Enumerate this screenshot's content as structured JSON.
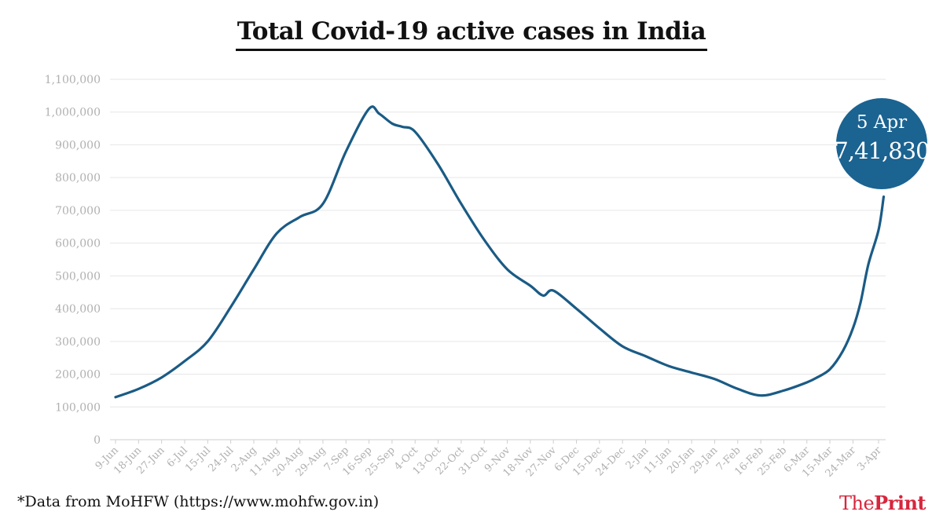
{
  "title": "Total Covid-19 active cases in India",
  "source": "*Data from MoHFW (https://www.mohfw.gov.in)",
  "logo": {
    "part1": "The",
    "part2": "Print"
  },
  "colors": {
    "line": "#1a5b85",
    "bubble": "#1b6391",
    "grid": "#e6e6e6",
    "tick_text": "#b0b0b0",
    "logo": "#d7263d"
  },
  "chart_data": {
    "type": "line",
    "title": "Total Covid-19 active cases in India",
    "xlabel": "",
    "ylabel": "",
    "ylim": [
      0,
      1100000
    ],
    "yticks": [
      0,
      100000,
      200000,
      300000,
      400000,
      500000,
      600000,
      700000,
      800000,
      900000,
      1000000,
      1100000
    ],
    "ytick_labels": [
      "0",
      "100,000",
      "200,000",
      "300,000",
      "400,000",
      "500,000",
      "600,000",
      "700,000",
      "800,000",
      "900,000",
      "1,000,000",
      "1,100,000"
    ],
    "xtick_labels": [
      "9-Jun",
      "18-Jun",
      "27-Jun",
      "6-Jul",
      "15-Jul",
      "24-Jul",
      "2-Aug",
      "11-Aug",
      "20-Aug",
      "29-Aug",
      "7-Sep",
      "16-Sep",
      "25-Sep",
      "4-Oct",
      "13-Oct",
      "22-Oct",
      "31-Oct",
      "9-Nov",
      "18-Nov",
      "27-Nov",
      "6-Dec",
      "15-Dec",
      "24-Dec",
      "2-Jan",
      "11-Jan",
      "20-Jan",
      "29-Jan",
      "7-Feb",
      "16-Feb",
      "25-Feb",
      "6-Mar",
      "15-Mar",
      "24-Mar",
      "3-Apr"
    ],
    "grid": true,
    "annotation": {
      "date": "5 Apr",
      "value": "7,41,830"
    },
    "series": [
      {
        "x": [
          "9-Jun",
          "18-Jun",
          "27-Jun",
          "6-Jul",
          "15-Jul",
          "24-Jul",
          "2-Aug",
          "11-Aug",
          "20-Aug",
          "29-Aug",
          "7-Sep",
          "16-Sep",
          "20-Sep",
          "25-Sep",
          "29-Sep",
          "4-Oct",
          "13-Oct",
          "22-Oct",
          "31-Oct",
          "9-Nov",
          "18-Nov",
          "23-Nov",
          "27-Nov",
          "6-Dec",
          "15-Dec",
          "24-Dec",
          "2-Jan",
          "11-Jan",
          "20-Jan",
          "29-Jan",
          "7-Feb",
          "16-Feb",
          "25-Feb",
          "6-Mar",
          "10-Mar",
          "15-Mar",
          "20-Mar",
          "24-Mar",
          "27-Mar",
          "30-Mar",
          "3-Apr",
          "5-Apr"
        ],
        "values": [
          130000,
          155000,
          190000,
          240000,
          300000,
          405000,
          520000,
          630000,
          680000,
          720000,
          880000,
          1010000,
          995000,
          965000,
          955000,
          940000,
          840000,
          720000,
          610000,
          520000,
          470000,
          440000,
          455000,
          400000,
          340000,
          285000,
          255000,
          225000,
          205000,
          185000,
          155000,
          135000,
          150000,
          175000,
          190000,
          215000,
          270000,
          340000,
          420000,
          535000,
          640000,
          741830
        ]
      }
    ]
  }
}
